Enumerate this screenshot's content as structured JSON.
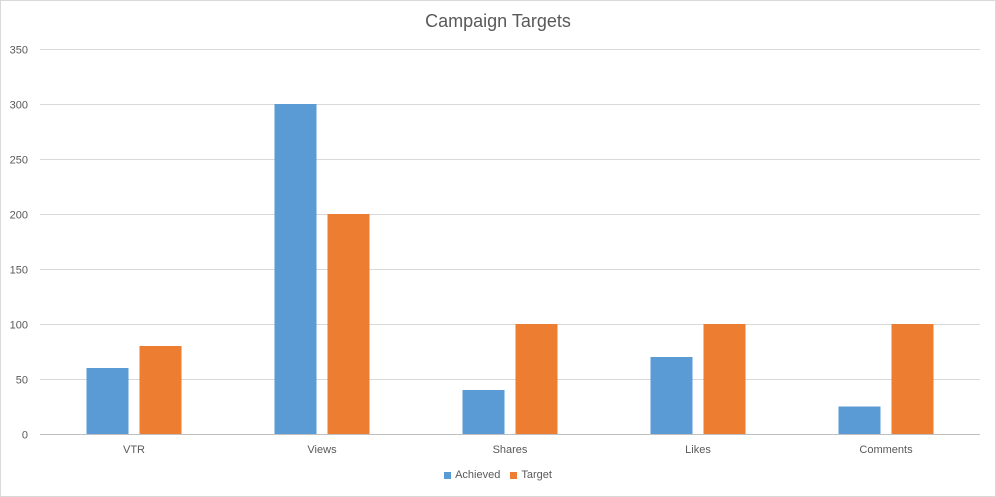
{
  "chart_data": {
    "type": "bar",
    "title": "Campaign Targets",
    "categories": [
      "VTR",
      "Views",
      "Shares",
      "Likes",
      "Comments"
    ],
    "series": [
      {
        "name": "Achieved",
        "color": "#5b9bd5",
        "values": [
          60,
          300,
          40,
          70,
          25
        ]
      },
      {
        "name": "Target",
        "color": "#ed7d31",
        "values": [
          80,
          200,
          100,
          100,
          100
        ]
      }
    ],
    "ylim": [
      0,
      350
    ],
    "yticks": [
      0,
      50,
      100,
      150,
      200,
      250,
      300,
      350
    ],
    "grid": true,
    "legend_position": "bottom"
  }
}
